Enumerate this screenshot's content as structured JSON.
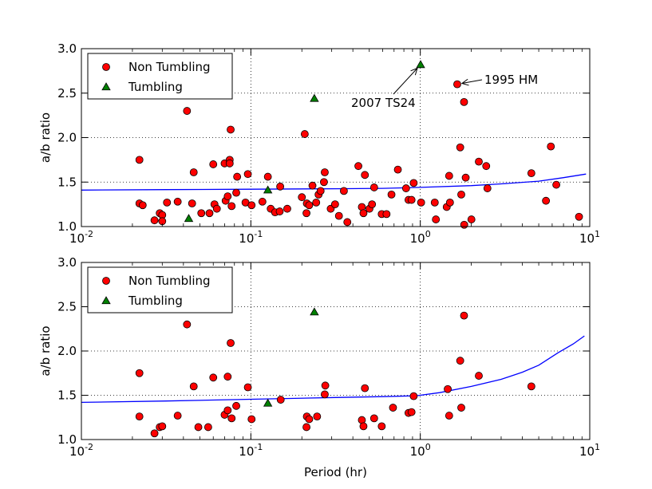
{
  "chart_data": [
    {
      "type": "scatter",
      "xscale": "log",
      "xlim": [
        0.01,
        10
      ],
      "ylim": [
        1.0,
        3.0
      ],
      "xlabel": "",
      "ylabel": "a/b ratio",
      "grid": true,
      "legend_position": "top-left",
      "x_ticks": [
        {
          "value": 0.01,
          "base": "10",
          "exp": "-2"
        },
        {
          "value": 0.1,
          "base": "10",
          "exp": "-1"
        },
        {
          "value": 1,
          "base": "10",
          "exp": "0"
        },
        {
          "value": 10,
          "base": "10",
          "exp": "1"
        }
      ],
      "y_ticks": [
        {
          "value": 1.0,
          "label": "1.0"
        },
        {
          "value": 1.5,
          "label": "1.5"
        },
        {
          "value": 2.0,
          "label": "2.0"
        },
        {
          "value": 2.5,
          "label": "2.5"
        },
        {
          "value": 3.0,
          "label": "3.0"
        }
      ],
      "series": [
        {
          "name": "Non Tumbling",
          "marker": "circle",
          "color": "#ff0000",
          "points": [
            [
              0.022,
              1.75
            ],
            [
              0.022,
              1.26
            ],
            [
              0.023,
              1.24
            ],
            [
              0.027,
              1.07
            ],
            [
              0.029,
              1.15
            ],
            [
              0.03,
              1.13
            ],
            [
              0.03,
              1.06
            ],
            [
              0.032,
              1.27
            ],
            [
              0.037,
              1.28
            ],
            [
              0.042,
              2.3
            ],
            [
              0.045,
              1.26
            ],
            [
              0.046,
              1.61
            ],
            [
              0.051,
              1.15
            ],
            [
              0.057,
              1.15
            ],
            [
              0.06,
              1.7
            ],
            [
              0.061,
              1.25
            ],
            [
              0.063,
              1.2
            ],
            [
              0.07,
              1.71
            ],
            [
              0.071,
              1.29
            ],
            [
              0.073,
              1.34
            ],
            [
              0.075,
              1.75
            ],
            [
              0.075,
              1.71
            ],
            [
              0.076,
              2.09
            ],
            [
              0.077,
              1.23
            ],
            [
              0.082,
              1.38
            ],
            [
              0.083,
              1.56
            ],
            [
              0.093,
              1.27
            ],
            [
              0.096,
              1.59
            ],
            [
              0.101,
              1.24
            ],
            [
              0.117,
              1.28
            ],
            [
              0.126,
              1.56
            ],
            [
              0.131,
              1.2
            ],
            [
              0.139,
              1.16
            ],
            [
              0.148,
              1.17
            ],
            [
              0.149,
              1.45
            ],
            [
              0.164,
              1.2
            ],
            [
              0.2,
              1.33
            ],
            [
              0.208,
              2.04
            ],
            [
              0.213,
              1.15
            ],
            [
              0.214,
              1.26
            ],
            [
              0.221,
              1.24
            ],
            [
              0.231,
              1.46
            ],
            [
              0.243,
              1.27
            ],
            [
              0.251,
              1.36
            ],
            [
              0.258,
              1.4
            ],
            [
              0.27,
              1.5
            ],
            [
              0.273,
              1.61
            ],
            [
              0.296,
              1.2
            ],
            [
              0.314,
              1.25
            ],
            [
              0.331,
              1.12
            ],
            [
              0.354,
              1.4
            ],
            [
              0.371,
              1.05
            ],
            [
              0.431,
              1.68
            ],
            [
              0.452,
              1.22
            ],
            [
              0.462,
              1.15
            ],
            [
              0.471,
              1.58
            ],
            [
              0.501,
              1.2
            ],
            [
              0.519,
              1.25
            ],
            [
              0.534,
              1.44
            ],
            [
              0.592,
              1.14
            ],
            [
              0.632,
              1.14
            ],
            [
              0.676,
              1.36
            ],
            [
              0.737,
              1.64
            ],
            [
              0.824,
              1.43
            ],
            [
              0.852,
              1.3
            ],
            [
              0.888,
              1.3
            ],
            [
              0.914,
              1.49
            ],
            [
              1.011,
              1.27
            ],
            [
              1.217,
              1.27
            ],
            [
              1.236,
              1.08
            ],
            [
              1.432,
              1.22
            ],
            [
              1.48,
              1.57
            ],
            [
              1.496,
              1.27
            ],
            [
              1.652,
              2.6
            ],
            [
              1.72,
              1.89
            ],
            [
              1.745,
              1.36
            ],
            [
              1.812,
              2.4
            ],
            [
              1.816,
              1.02
            ],
            [
              1.853,
              1.55
            ],
            [
              2.003,
              1.08
            ],
            [
              2.215,
              1.73
            ],
            [
              2.449,
              1.68
            ],
            [
              2.49,
              1.43
            ],
            [
              4.523,
              1.6
            ],
            [
              5.516,
              1.29
            ],
            [
              5.894,
              1.9
            ],
            [
              6.348,
              1.47
            ],
            [
              8.642,
              1.11
            ]
          ]
        },
        {
          "name": "Tumbling",
          "marker": "triangle",
          "color": "#008000",
          "points": [
            [
              0.043,
              1.09
            ],
            [
              0.126,
              1.41
            ],
            [
              0.237,
              2.44
            ],
            [
              1.004,
              2.82
            ]
          ]
        }
      ],
      "fit_line": {
        "color": "#0000ff",
        "points": [
          [
            0.01,
            1.41
          ],
          [
            0.0316,
            1.415
          ],
          [
            0.1,
            1.42
          ],
          [
            0.316,
            1.425
          ],
          [
            0.6,
            1.43
          ],
          [
            1.0,
            1.44
          ],
          [
            2.0,
            1.46
          ],
          [
            3.0,
            1.48
          ],
          [
            5.0,
            1.51
          ],
          [
            7.0,
            1.55
          ],
          [
            9.5,
            1.59
          ]
        ]
      },
      "annotations": [
        {
          "text": "2007 TS24",
          "target": [
            1.004,
            2.82
          ]
        },
        {
          "text": "1995 HM",
          "target": [
            1.652,
            2.6
          ]
        }
      ]
    },
    {
      "type": "scatter",
      "xscale": "log",
      "xlim": [
        0.01,
        10
      ],
      "ylim": [
        1.0,
        3.0
      ],
      "xlabel": "Period (hr)",
      "ylabel": "a/b ratio",
      "grid": true,
      "legend_position": "top-left",
      "x_ticks": [
        {
          "value": 0.01,
          "base": "10",
          "exp": "-2"
        },
        {
          "value": 0.1,
          "base": "10",
          "exp": "-1"
        },
        {
          "value": 1,
          "base": "10",
          "exp": "0"
        },
        {
          "value": 10,
          "base": "10",
          "exp": "1"
        }
      ],
      "y_ticks": [
        {
          "value": 1.0,
          "label": "1.0"
        },
        {
          "value": 1.5,
          "label": "1.5"
        },
        {
          "value": 2.0,
          "label": "2.0"
        },
        {
          "value": 2.5,
          "label": "2.5"
        },
        {
          "value": 3.0,
          "label": "3.0"
        }
      ],
      "series": [
        {
          "name": "Non Tumbling",
          "marker": "circle",
          "color": "#ff0000",
          "points": [
            [
              0.022,
              1.75
            ],
            [
              0.022,
              1.26
            ],
            [
              0.027,
              1.07
            ],
            [
              0.029,
              1.14
            ],
            [
              0.03,
              1.15
            ],
            [
              0.037,
              1.27
            ],
            [
              0.042,
              2.3
            ],
            [
              0.046,
              1.6
            ],
            [
              0.049,
              1.14
            ],
            [
              0.056,
              1.14
            ],
            [
              0.06,
              1.7
            ],
            [
              0.07,
              1.28
            ],
            [
              0.073,
              1.71
            ],
            [
              0.073,
              1.33
            ],
            [
              0.076,
              2.09
            ],
            [
              0.077,
              1.24
            ],
            [
              0.082,
              1.38
            ],
            [
              0.096,
              1.59
            ],
            [
              0.101,
              1.23
            ],
            [
              0.15,
              1.45
            ],
            [
              0.213,
              1.14
            ],
            [
              0.214,
              1.26
            ],
            [
              0.221,
              1.23
            ],
            [
              0.246,
              1.26
            ],
            [
              0.273,
              1.51
            ],
            [
              0.275,
              1.61
            ],
            [
              0.452,
              1.22
            ],
            [
              0.462,
              1.15
            ],
            [
              0.471,
              1.58
            ],
            [
              0.534,
              1.24
            ],
            [
              0.592,
              1.15
            ],
            [
              0.69,
              1.36
            ],
            [
              0.852,
              1.3
            ],
            [
              0.888,
              1.31
            ],
            [
              0.914,
              1.49
            ],
            [
              1.452,
              1.57
            ],
            [
              1.48,
              1.27
            ],
            [
              1.72,
              1.89
            ],
            [
              1.745,
              1.36
            ],
            [
              1.812,
              2.4
            ],
            [
              2.215,
              1.72
            ],
            [
              4.523,
              1.6
            ]
          ]
        },
        {
          "name": "Tumbling",
          "marker": "triangle",
          "color": "#008000",
          "points": [
            [
              0.126,
              1.41
            ],
            [
              0.237,
              2.44
            ]
          ]
        }
      ],
      "fit_line": {
        "color": "#0000ff",
        "points": [
          [
            0.01,
            1.42
          ],
          [
            0.0316,
            1.435
          ],
          [
            0.1,
            1.455
          ],
          [
            0.316,
            1.475
          ],
          [
            0.6,
            1.485
          ],
          [
            0.95,
            1.495
          ],
          [
            1.3,
            1.53
          ],
          [
            2.0,
            1.6
          ],
          [
            3.0,
            1.68
          ],
          [
            4.0,
            1.76
          ],
          [
            5.0,
            1.84
          ],
          [
            6.5,
            1.98
          ],
          [
            8.0,
            2.08
          ],
          [
            9.3,
            2.17
          ]
        ]
      },
      "annotations": []
    }
  ]
}
